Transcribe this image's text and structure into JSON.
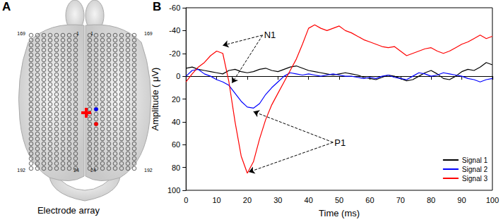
{
  "panel_labels": [
    "A",
    "B"
  ],
  "electrode_array": {
    "caption": "Electrode array",
    "numbers_top": [
      "169",
      "1",
      "1",
      "169"
    ],
    "numbers_bottom": [
      "192",
      "24",
      "24",
      "192"
    ]
  },
  "chart_data": {
    "type": "line",
    "x_label": "Time (ms)",
    "y_label": "Amplitude ( μV)",
    "xlim": [
      0,
      100
    ],
    "xticks": [
      0,
      10,
      20,
      30,
      40,
      50,
      60,
      70,
      80,
      90,
      100
    ],
    "ylim": [
      -60,
      100
    ],
    "yticks": [
      -60,
      -40,
      -20,
      0,
      20,
      40,
      60,
      80,
      100
    ],
    "y_inverted": true,
    "grid": false,
    "legend": "bottom-right",
    "x": [
      0,
      2,
      4,
      6,
      8,
      10,
      12,
      14,
      16,
      18,
      20,
      22,
      24,
      26,
      28,
      30,
      32,
      34,
      36,
      38,
      40,
      42,
      44,
      46,
      48,
      50,
      52,
      54,
      56,
      58,
      60,
      62,
      64,
      66,
      68,
      70,
      72,
      74,
      76,
      78,
      80,
      82,
      84,
      86,
      88,
      90,
      92,
      94,
      96,
      98,
      100
    ],
    "series": [
      {
        "name": "Signal 1",
        "color": "#000000",
        "values": [
          -7,
          -8,
          -6,
          -5,
          -4,
          -3,
          -2,
          -5,
          -6,
          -4,
          -3,
          -4,
          -6,
          -7,
          -5,
          -4,
          -6,
          -8,
          -9,
          -7,
          -5,
          -4,
          -3,
          -2,
          -1,
          -2,
          -3,
          -2,
          -1,
          1,
          2,
          3,
          1,
          -1,
          0,
          2,
          4,
          3,
          0,
          -3,
          -5,
          -2,
          2,
          3,
          0,
          -4,
          -6,
          -5,
          -8,
          -12,
          -10
        ]
      },
      {
        "name": "Signal 2",
        "color": "#0000ff",
        "values": [
          0,
          -5,
          -6,
          -2,
          0,
          3,
          5,
          8,
          15,
          22,
          27,
          28,
          24,
          16,
          10,
          5,
          0,
          -3,
          -2,
          -1,
          -2,
          -1,
          0,
          -1,
          -2,
          -1,
          0,
          0,
          1,
          2,
          1,
          2,
          0,
          -1,
          1,
          2,
          3,
          0,
          -3,
          -2,
          0,
          -1,
          -3,
          -2,
          -1,
          0,
          2,
          3,
          5,
          3,
          2
        ]
      },
      {
        "name": "Signal 3",
        "color": "#ff0000",
        "values": [
          5,
          -2,
          -8,
          -12,
          -18,
          -22,
          -20,
          5,
          40,
          70,
          85,
          75,
          55,
          38,
          25,
          15,
          5,
          -5,
          -15,
          -28,
          -42,
          -45,
          -42,
          -40,
          -42,
          -44,
          -40,
          -38,
          -35,
          -32,
          -30,
          -28,
          -26,
          -25,
          -26,
          -22,
          -18,
          -20,
          -22,
          -24,
          -25,
          -22,
          -20,
          -22,
          -25,
          -28,
          -30,
          -33,
          -36,
          -33,
          -35
        ]
      }
    ],
    "annotations": [
      {
        "text": "N1",
        "x": 25,
        "y": -36,
        "targets": [
          [
            12,
            -27
          ],
          [
            15,
            6
          ]
        ]
      },
      {
        "text": "P1",
        "x": 48,
        "y": 58,
        "targets": [
          [
            22,
            31
          ],
          [
            20.5,
            84
          ]
        ]
      }
    ]
  }
}
